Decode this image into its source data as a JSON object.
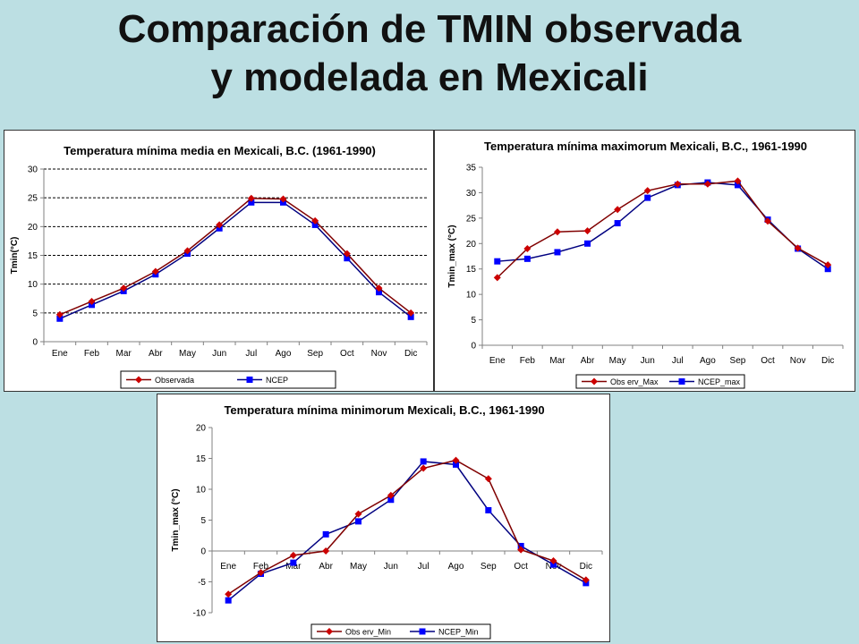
{
  "slide": {
    "title_line1": "Comparación de TMIN observada",
    "title_line2": "y modelada en Mexicali"
  },
  "colors": {
    "background": "#bcdfe3",
    "observed": "#cc0000",
    "observed_line": "#800000",
    "model": "#0000ff",
    "model_line": "#000080"
  },
  "chart_data": [
    {
      "type": "line",
      "title": "Temperatura mínima media en Mexicali, B.C. (1961-1990)",
      "xlabel": "",
      "ylabel": "Tmin(°C)",
      "categories": [
        "Ene",
        "Feb",
        "Mar",
        "Abr",
        "May",
        "Jun",
        "Jul",
        "Ago",
        "Sep",
        "Oct",
        "Nov",
        "Dic"
      ],
      "ylim": [
        0,
        30
      ],
      "yticks": [
        0,
        5,
        10,
        15,
        20,
        25,
        30
      ],
      "grid": true,
      "legend": "bottom",
      "series": [
        {
          "name": "Observada",
          "marker": "diamond",
          "values": [
            4.7,
            7.0,
            9.3,
            12.2,
            15.8,
            20.3,
            24.9,
            24.8,
            21.0,
            15.3,
            9.3,
            5.0
          ]
        },
        {
          "name": "NCEP",
          "marker": "square",
          "values": [
            4.0,
            6.4,
            8.8,
            11.7,
            15.3,
            19.7,
            24.2,
            24.2,
            20.3,
            14.5,
            8.6,
            4.3
          ]
        }
      ]
    },
    {
      "type": "line",
      "title": "Temperatura mínima maximorum Mexicali, B.C., 1961-1990",
      "xlabel": "",
      "ylabel": "Tmin_max (°C)",
      "categories": [
        "Ene",
        "Feb",
        "Mar",
        "Abr",
        "May",
        "Jun",
        "Jul",
        "Ago",
        "Sep",
        "Oct",
        "Nov",
        "Dic"
      ],
      "ylim": [
        0,
        35
      ],
      "yticks": [
        0,
        5,
        10,
        15,
        20,
        25,
        30,
        35
      ],
      "grid": false,
      "legend": "bottom",
      "series": [
        {
          "name": "Obs erv_Max",
          "marker": "diamond",
          "values": [
            13.3,
            19.0,
            22.3,
            22.5,
            26.7,
            30.4,
            31.7,
            31.7,
            32.3,
            24.4,
            19.1,
            15.8
          ]
        },
        {
          "name": "NCEP_max",
          "marker": "square",
          "values": [
            16.5,
            17.0,
            18.3,
            20.0,
            24.0,
            29.0,
            31.5,
            32.0,
            31.5,
            24.7,
            19.0,
            15.0
          ]
        }
      ]
    },
    {
      "type": "line",
      "title": "Temperatura mínima minimorum Mexicali, B.C., 1961-1990",
      "xlabel": "",
      "ylabel": "Tmin_max (°C)",
      "categories": [
        "Ene",
        "Feb",
        "Mar",
        "Abr",
        "May",
        "Jun",
        "Jul",
        "Ago",
        "Sep",
        "Oct",
        "Nov",
        "Dic"
      ],
      "ylim": [
        -10,
        20
      ],
      "yticks": [
        -10,
        -5,
        0,
        5,
        10,
        15,
        20
      ],
      "grid": false,
      "legend": "bottom",
      "series": [
        {
          "name": "Obs erv_Min",
          "marker": "diamond",
          "values": [
            -7.0,
            -3.5,
            -0.7,
            0.0,
            6.0,
            9.0,
            13.4,
            14.7,
            11.7,
            0.2,
            -1.6,
            -4.7
          ]
        },
        {
          "name": "NCEP_Min",
          "marker": "square",
          "values": [
            -8.0,
            -3.7,
            -1.9,
            2.7,
            4.8,
            8.3,
            14.5,
            14.0,
            6.6,
            0.8,
            -2.2,
            -5.2
          ]
        }
      ]
    }
  ]
}
